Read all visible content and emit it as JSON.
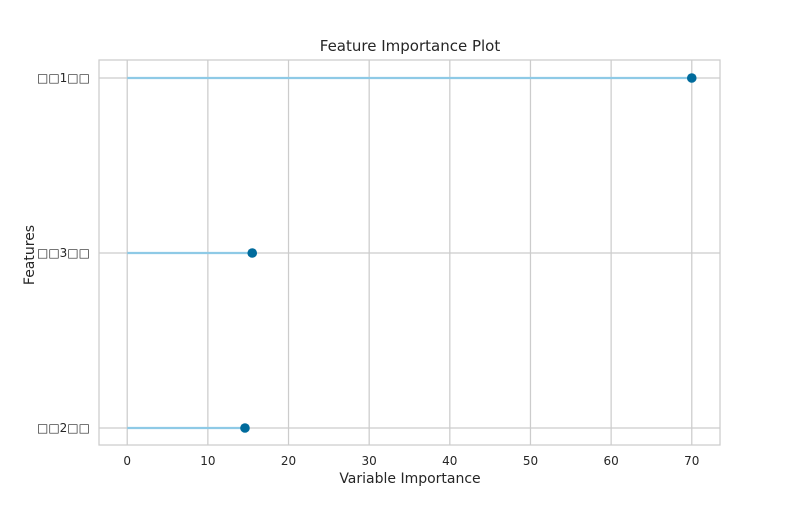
{
  "chart_data": {
    "type": "lollipop",
    "title": "Feature Importance Plot",
    "xlabel": "Variable Importance",
    "ylabel": "Features",
    "xlim": [
      -3.5,
      73.5
    ],
    "xticks": [
      0,
      10,
      20,
      30,
      40,
      50,
      60,
      70
    ],
    "grid": true,
    "categories": [
      "□□1□□",
      "□□3□□",
      "□□2□□"
    ],
    "values": [
      70.0,
      15.5,
      14.6
    ],
    "colors": {
      "stem": "#8ecae6",
      "marker": "#006b9c",
      "grid": "#cccccc",
      "axes": "#cccccc",
      "text": "#262626"
    }
  }
}
